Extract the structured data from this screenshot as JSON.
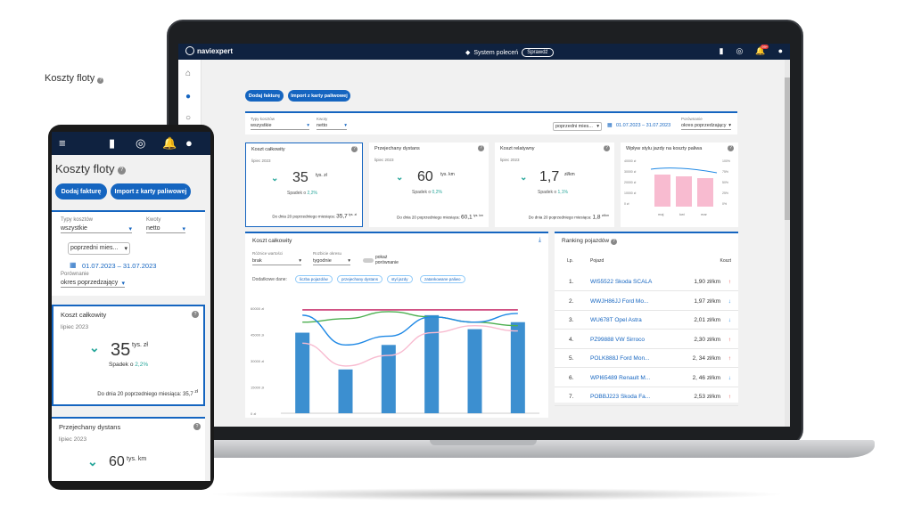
{
  "app": {
    "logo_text": "naviexpert",
    "system_polecen": "System poleceń",
    "sprawdz": "Sprawdź",
    "notif_count": "99+"
  },
  "page": {
    "title": "Koszty floty",
    "btn_invoice": "Dodaj fakturę",
    "btn_import": "Import z karty paliwowej"
  },
  "filters": {
    "typ_label": "Typy kosztów",
    "typ_value": "wszystkie",
    "kwoty_label": "Kwoty",
    "kwoty_value": "netto",
    "period_value": "poprzedni mies...",
    "date_range": "01.07.2023 – 31.07.2023",
    "porownanie_label": "Porównanie",
    "porownanie_value": "okres poprzedzający"
  },
  "cards": [
    {
      "title": "Koszt całkowity",
      "period": "lipiec 2023",
      "value": "35",
      "unit": "tys. zł",
      "change_label": "Spadek o",
      "change": "2,2%",
      "foot_label": "Do dnia 20 poprzedniego miesiąca:",
      "foot_value": "35,7",
      "foot_unit": "tys. zł"
    },
    {
      "title": "Przejechany dystans",
      "period": "lipiec 2023",
      "value": "60",
      "unit": "tys. km",
      "change_label": "Spadek o",
      "change": "0,2%",
      "foot_label": "Do dnia 20 poprzedniego miesiąca:",
      "foot_value": "60,1",
      "foot_unit": "tys. km"
    },
    {
      "title": "Koszt relatywny",
      "period": "lipiec 2023",
      "value": "1,7",
      "unit": "zł/km",
      "change_label": "Spadek o",
      "change": "1,1%",
      "foot_label": "Do dnia 20 poprzedniego miesiąca:",
      "foot_value": "1,8",
      "foot_unit": "zł/km"
    }
  ],
  "style_card": {
    "title": "Wpływ stylu jazdy na koszty paliwa",
    "y_left": [
      "40000 zł",
      "30000 zł",
      "20000 zł",
      "10000 zł",
      "0 zł"
    ],
    "y_right": [
      "100%",
      "75%",
      "50%",
      "25%",
      "0%"
    ],
    "months": [
      "maj",
      "kwi",
      "mar"
    ]
  },
  "chart_data": {
    "type": "bar",
    "title": "Koszt całkowity",
    "categories": [
      "",
      "",
      "",
      "",
      "",
      ""
    ],
    "values": [
      46000,
      25000,
      39000,
      56000,
      48000,
      52000
    ],
    "y_ticks": [
      "60000 zł",
      "45000 zł",
      "30000 zł",
      "15000 zł",
      "0 zł"
    ],
    "ylim": [
      0,
      60000
    ],
    "lines": [
      {
        "color": "#c2185b",
        "values": [
          59000,
          59000,
          59000,
          59000,
          59000,
          59000
        ]
      },
      {
        "color": "#4caf50",
        "values": [
          52000,
          54000,
          58000,
          55000,
          52000,
          50000
        ]
      },
      {
        "color": "#1e88e5",
        "values": [
          56000,
          39000,
          44000,
          55000,
          52000,
          57000
        ]
      },
      {
        "color": "#f8bbd0",
        "values": [
          40000,
          27000,
          33000,
          46000,
          50000,
          47000
        ]
      }
    ]
  },
  "chart_panel": {
    "title": "Koszt całkowity",
    "roznice_label": "Różnice wartości",
    "roznice_value": "brak",
    "rozbicie_label": "Rozbicie okresu",
    "rozbicie_value": "tygodnie",
    "porownanie": "pokaż porównanie",
    "dodatkowe_label": "Dodatkowe dane:",
    "chips": [
      "liczba pojazdów",
      "przejechany dystans",
      "styl jazdy",
      "zatankowane paliwo"
    ]
  },
  "ranking": {
    "title": "Ranking pojazdów",
    "col_lp": "Lp.",
    "col_pojazd": "Pojazd",
    "col_koszt": "Koszt",
    "rows": [
      {
        "lp": "1.",
        "name": "WI55522 Skoda SCALA",
        "cost": "1,90 zł/km",
        "trend": "↑",
        "trend_color": "#e53935"
      },
      {
        "lp": "2.",
        "name": "WWJH86JJ Ford Mo...",
        "cost": "1,97 zł/km",
        "trend": "↓",
        "trend_color": "#1e88e5"
      },
      {
        "lp": "3.",
        "name": "WU678T Opel Astra",
        "cost": "2,01 zł/km",
        "trend": "↓",
        "trend_color": "#1e88e5"
      },
      {
        "lp": "4.",
        "name": "PZ99888 VW Sirroco",
        "cost": "2,30 zł/km",
        "trend": "↑",
        "trend_color": "#e53935"
      },
      {
        "lp": "5.",
        "name": "POLK888J Ford Mon...",
        "cost": "2, 34 zł/km",
        "trend": "↑",
        "trend_color": "#e53935"
      },
      {
        "lp": "6.",
        "name": "WPI65489 Renault M...",
        "cost": "2, 46 zł/km",
        "trend": "↓",
        "trend_color": "#1e88e5"
      },
      {
        "lp": "7.",
        "name": "POBBJ223 Skoda Fa...",
        "cost": "2,53 zł/km",
        "trend": "↑",
        "trend_color": "#e53935"
      }
    ]
  },
  "phone": {
    "title": "Koszty floty",
    "btn_invoice": "Dodaj fakturę",
    "btn_import": "Import z karty paliwowej",
    "typ_label": "Typy kosztów",
    "typ_value": "wszystkie",
    "kwoty_label": "Kwoty",
    "kwoty_value": "netto",
    "period_value": "poprzedni mies...",
    "date_range": "01.07.2023 – 31.07.2023",
    "porownanie_label": "Porównanie",
    "porownanie_value": "okres poprzedzający",
    "card1_title": "Koszt całkowity",
    "card1_period": "lipiec 2023",
    "card1_value": "35",
    "card1_unit": "tys. zł",
    "card1_change_label": "Spadek o",
    "card1_change": "2,2%",
    "card1_foot": "Do dnia 20 poprzedniego miesiąca: 35,7",
    "card1_foot_unit": "zł",
    "card2_title": "Przejechany dystans",
    "card2_period": "lipiec 2023",
    "card2_value": "60",
    "card2_unit": "tys. km"
  }
}
